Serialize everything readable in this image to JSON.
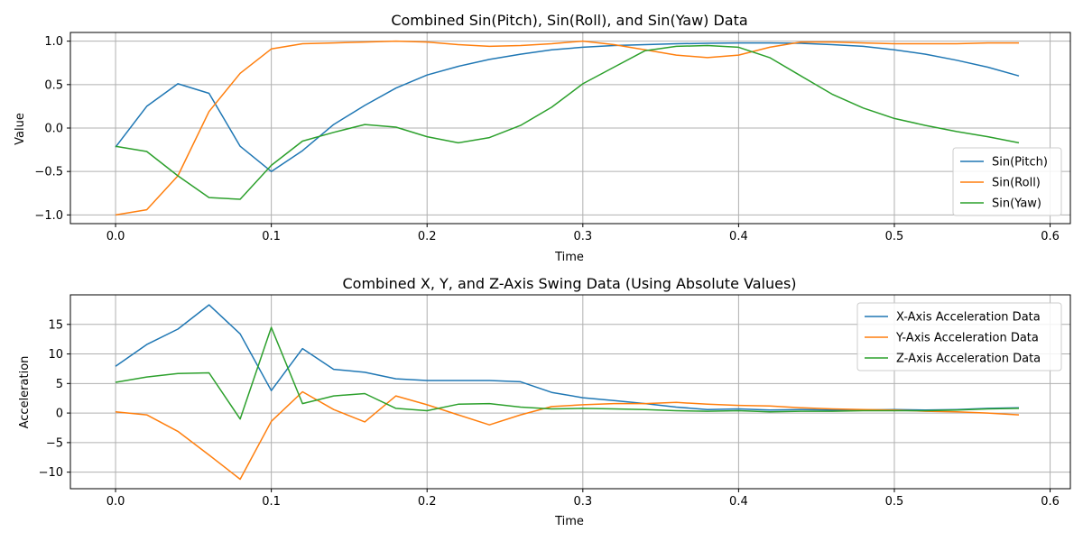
{
  "chart_data": [
    {
      "type": "line",
      "title": "Combined Sin(Pitch), Sin(Roll), and Sin(Yaw) Data",
      "xlabel": "Time",
      "ylabel": "Value",
      "xlim": [
        -0.029,
        0.613
      ],
      "ylim": [
        -1.1,
        1.1
      ],
      "xticks": [
        0.0,
        0.1,
        0.2,
        0.3,
        0.4,
        0.5,
        0.6
      ],
      "xtick_labels": [
        "0.0",
        "0.1",
        "0.2",
        "0.3",
        "0.4",
        "0.5",
        "0.6"
      ],
      "yticks": [
        -1.0,
        -0.5,
        0.0,
        0.5,
        1.0
      ],
      "ytick_labels": [
        "−1.0",
        "−0.5",
        "0.0",
        "0.5",
        "1.0"
      ],
      "grid": true,
      "legend_position": "lower-right",
      "x": [
        0.0,
        0.02,
        0.04,
        0.06,
        0.08,
        0.1,
        0.12,
        0.14,
        0.16,
        0.18,
        0.2,
        0.22,
        0.24,
        0.26,
        0.28,
        0.3,
        0.32,
        0.34,
        0.36,
        0.38,
        0.4,
        0.42,
        0.44,
        0.46,
        0.48,
        0.5,
        0.52,
        0.54,
        0.56,
        0.58
      ],
      "series": [
        {
          "name": "Sin(Pitch)",
          "color": "#1f77b4",
          "values": [
            -0.22,
            0.25,
            0.51,
            0.4,
            -0.21,
            -0.5,
            -0.26,
            0.04,
            0.26,
            0.46,
            0.61,
            0.71,
            0.79,
            0.85,
            0.9,
            0.93,
            0.95,
            0.96,
            0.97,
            0.975,
            0.98,
            0.98,
            0.975,
            0.96,
            0.94,
            0.9,
            0.85,
            0.78,
            0.7,
            0.6
          ]
        },
        {
          "name": "Sin(Roll)",
          "color": "#ff7f0e",
          "values": [
            -1.0,
            -0.94,
            -0.55,
            0.19,
            0.63,
            0.91,
            0.97,
            0.98,
            0.99,
            1.0,
            0.99,
            0.96,
            0.94,
            0.95,
            0.97,
            1.0,
            0.96,
            0.9,
            0.84,
            0.81,
            0.84,
            0.93,
            0.99,
            0.99,
            0.98,
            0.97,
            0.97,
            0.97,
            0.98,
            0.98
          ]
        },
        {
          "name": "Sin(Yaw)",
          "color": "#2ca02c",
          "values": [
            -0.21,
            -0.27,
            -0.55,
            -0.8,
            -0.82,
            -0.43,
            -0.15,
            -0.05,
            0.04,
            0.01,
            -0.1,
            -0.17,
            -0.11,
            0.03,
            0.24,
            0.51,
            0.7,
            0.89,
            0.94,
            0.95,
            0.93,
            0.81,
            0.6,
            0.39,
            0.23,
            0.11,
            0.03,
            -0.04,
            -0.1,
            -0.17
          ]
        }
      ]
    },
    {
      "type": "line",
      "title": "Combined X, Y, and Z-Axis Swing Data (Using Absolute Values)",
      "xlabel": "Time",
      "ylabel": "Acceleration",
      "xlim": [
        -0.029,
        0.613
      ],
      "ylim": [
        -12.8,
        20.0
      ],
      "xticks": [
        0.0,
        0.1,
        0.2,
        0.3,
        0.4,
        0.5,
        0.6
      ],
      "xtick_labels": [
        "0.0",
        "0.1",
        "0.2",
        "0.3",
        "0.4",
        "0.5",
        "0.6"
      ],
      "yticks": [
        -10,
        -5,
        0,
        5,
        10,
        15
      ],
      "ytick_labels": [
        "−10",
        "−5",
        "0",
        "5",
        "10",
        "15"
      ],
      "grid": true,
      "legend_position": "upper-right",
      "x": [
        0.0,
        0.02,
        0.04,
        0.06,
        0.08,
        0.1,
        0.12,
        0.14,
        0.16,
        0.18,
        0.2,
        0.22,
        0.24,
        0.26,
        0.28,
        0.3,
        0.32,
        0.34,
        0.36,
        0.38,
        0.4,
        0.42,
        0.44,
        0.46,
        0.48,
        0.5,
        0.52,
        0.54,
        0.56,
        0.58
      ],
      "series": [
        {
          "name": "X-Axis Acceleration Data",
          "color": "#1f77b4",
          "values": [
            7.9,
            11.6,
            14.2,
            18.3,
            13.4,
            3.8,
            10.9,
            7.4,
            6.9,
            5.8,
            5.5,
            5.5,
            5.5,
            5.3,
            3.5,
            2.6,
            2.1,
            1.6,
            1.0,
            0.6,
            0.7,
            0.5,
            0.6,
            0.5,
            0.5,
            0.6,
            0.5,
            0.6,
            0.8,
            0.9
          ]
        },
        {
          "name": "Y-Axis Acceleration Data",
          "color": "#ff7f0e",
          "values": [
            0.2,
            -0.3,
            -3.1,
            -7.1,
            -11.2,
            -1.4,
            3.6,
            0.6,
            -1.5,
            2.9,
            1.4,
            -0.3,
            -2.0,
            -0.3,
            1.1,
            1.4,
            1.6,
            1.6,
            1.8,
            1.5,
            1.3,
            1.2,
            0.9,
            0.7,
            0.6,
            0.5,
            0.3,
            0.2,
            0.0,
            -0.3
          ]
        },
        {
          "name": "Z-Axis Acceleration Data",
          "color": "#2ca02c",
          "values": [
            5.2,
            6.1,
            6.7,
            6.8,
            -1.0,
            14.5,
            1.6,
            2.9,
            3.3,
            0.8,
            0.4,
            1.5,
            1.6,
            1.0,
            0.7,
            0.8,
            0.7,
            0.6,
            0.4,
            0.3,
            0.4,
            0.2,
            0.3,
            0.3,
            0.4,
            0.4,
            0.4,
            0.5,
            0.7,
            0.8
          ]
        }
      ]
    }
  ]
}
